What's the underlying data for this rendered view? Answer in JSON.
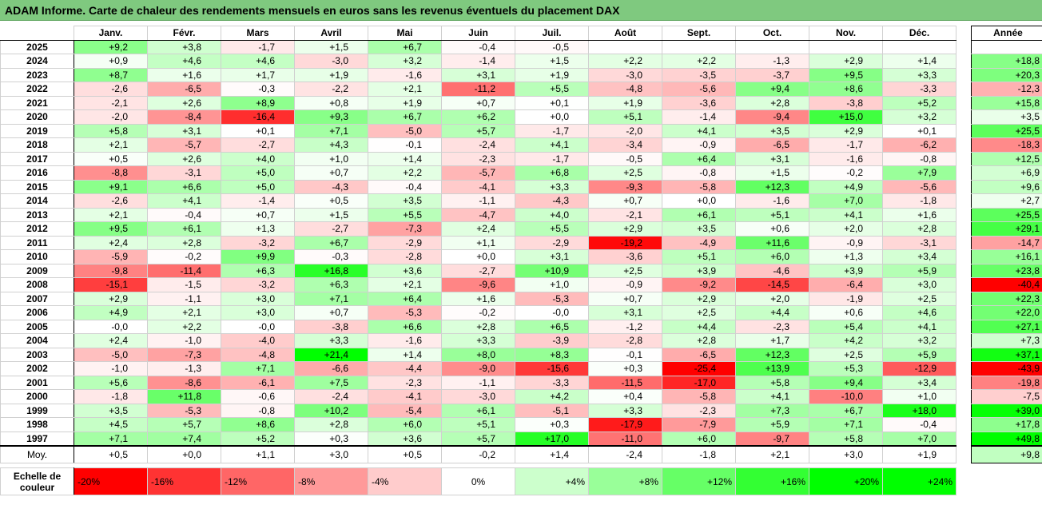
{
  "title": "ADAM Informe. Carte de chaleur des rendements mensuels en euros sans les revenus éventuels du placement DAX",
  "chart_data": {
    "type": "heatmap",
    "title": "ADAM Informe. Carte de chaleur des rendements mensuels en euros sans les revenus éventuels du placement DAX",
    "columns": [
      "Janv.",
      "Févr.",
      "Mars",
      "Avril",
      "Mai",
      "Juin",
      "Juil.",
      "Août",
      "Sept.",
      "Oct.",
      "Nov.",
      "Déc."
    ],
    "annual_header": "Année",
    "rows": [
      {
        "year": "2025",
        "values": [
          "+9,2",
          "+3,8",
          "-1,7",
          "+1,5",
          "+6,7",
          "-0,4",
          "-0,5",
          "",
          "",
          "",
          "",
          ""
        ],
        "annual": ""
      },
      {
        "year": "2024",
        "values": [
          "+0,9",
          "+4,6",
          "+4,6",
          "-3,0",
          "+3,2",
          "-1,4",
          "+1,5",
          "+2,2",
          "+2,2",
          "-1,3",
          "+2,9",
          "+1,4"
        ],
        "annual": "+18,8"
      },
      {
        "year": "2023",
        "values": [
          "+8,7",
          "+1,6",
          "+1,7",
          "+1,9",
          "-1,6",
          "+3,1",
          "+1,9",
          "-3,0",
          "-3,5",
          "-3,7",
          "+9,5",
          "+3,3"
        ],
        "annual": "+20,3"
      },
      {
        "year": "2022",
        "values": [
          "-2,6",
          "-6,5",
          "-0,3",
          "-2,2",
          "+2,1",
          "-11,2",
          "+5,5",
          "-4,8",
          "-5,6",
          "+9,4",
          "+8,6",
          "-3,3"
        ],
        "annual": "-12,3"
      },
      {
        "year": "2021",
        "values": [
          "-2,1",
          "+2,6",
          "+8,9",
          "+0,8",
          "+1,9",
          "+0,7",
          "+0,1",
          "+1,9",
          "-3,6",
          "+2,8",
          "-3,8",
          "+5,2"
        ],
        "annual": "+15,8"
      },
      {
        "year": "2020",
        "values": [
          "-2,0",
          "-8,4",
          "-16,4",
          "+9,3",
          "+6,7",
          "+6,2",
          "+0,0",
          "+5,1",
          "-1,4",
          "-9,4",
          "+15,0",
          "+3,2"
        ],
        "annual": "+3,5"
      },
      {
        "year": "2019",
        "values": [
          "+5,8",
          "+3,1",
          "+0,1",
          "+7,1",
          "-5,0",
          "+5,7",
          "-1,7",
          "-2,0",
          "+4,1",
          "+3,5",
          "+2,9",
          "+0,1"
        ],
        "annual": "+25,5"
      },
      {
        "year": "2018",
        "values": [
          "+2,1",
          "-5,7",
          "-2,7",
          "+4,3",
          "-0,1",
          "-2,4",
          "+4,1",
          "-3,4",
          "-0,9",
          "-6,5",
          "-1,7",
          "-6,2"
        ],
        "annual": "-18,3"
      },
      {
        "year": "2017",
        "values": [
          "+0,5",
          "+2,6",
          "+4,0",
          "+1,0",
          "+1,4",
          "-2,3",
          "-1,7",
          "-0,5",
          "+6,4",
          "+3,1",
          "-1,6",
          "-0,8"
        ],
        "annual": "+12,5"
      },
      {
        "year": "2016",
        "values": [
          "-8,8",
          "-3,1",
          "+5,0",
          "+0,7",
          "+2,2",
          "-5,7",
          "+6,8",
          "+2,5",
          "-0,8",
          "+1,5",
          "-0,2",
          "+7,9"
        ],
        "annual": "+6,9"
      },
      {
        "year": "2015",
        "values": [
          "+9,1",
          "+6,6",
          "+5,0",
          "-4,3",
          "-0,4",
          "-4,1",
          "+3,3",
          "-9,3",
          "-5,8",
          "+12,3",
          "+4,9",
          "-5,6"
        ],
        "annual": "+9,6"
      },
      {
        "year": "2014",
        "values": [
          "-2,6",
          "+4,1",
          "-1,4",
          "+0,5",
          "+3,5",
          "-1,1",
          "-4,3",
          "+0,7",
          "+0,0",
          "-1,6",
          "+7,0",
          "-1,8"
        ],
        "annual": "+2,7"
      },
      {
        "year": "2013",
        "values": [
          "+2,1",
          "-0,4",
          "+0,7",
          "+1,5",
          "+5,5",
          "-4,7",
          "+4,0",
          "-2,1",
          "+6,1",
          "+5,1",
          "+4,1",
          "+1,6"
        ],
        "annual": "+25,5"
      },
      {
        "year": "2012",
        "values": [
          "+9,5",
          "+6,1",
          "+1,3",
          "-2,7",
          "-7,3",
          "+2,4",
          "+5,5",
          "+2,9",
          "+3,5",
          "+0,6",
          "+2,0",
          "+2,8"
        ],
        "annual": "+29,1"
      },
      {
        "year": "2011",
        "values": [
          "+2,4",
          "+2,8",
          "-3,2",
          "+6,7",
          "-2,9",
          "+1,1",
          "-2,9",
          "-19,2",
          "-4,9",
          "+11,6",
          "-0,9",
          "-3,1"
        ],
        "annual": "-14,7"
      },
      {
        "year": "2010",
        "values": [
          "-5,9",
          "-0,2",
          "+9,9",
          "-0,3",
          "-2,8",
          "+0,0",
          "+3,1",
          "-3,6",
          "+5,1",
          "+6,0",
          "+1,3",
          "+3,4"
        ],
        "annual": "+16,1"
      },
      {
        "year": "2009",
        "values": [
          "-9,8",
          "-11,4",
          "+6,3",
          "+16,8",
          "+3,6",
          "-2,7",
          "+10,9",
          "+2,5",
          "+3,9",
          "-4,6",
          "+3,9",
          "+5,9"
        ],
        "annual": "+23,8"
      },
      {
        "year": "2008",
        "values": [
          "-15,1",
          "-1,5",
          "-3,2",
          "+6,3",
          "+2,1",
          "-9,6",
          "+1,0",
          "-0,9",
          "-9,2",
          "-14,5",
          "-6,4",
          "+3,0"
        ],
        "annual": "-40,4"
      },
      {
        "year": "2007",
        "values": [
          "+2,9",
          "-1,1",
          "+3,0",
          "+7,1",
          "+6,4",
          "+1,6",
          "-5,3",
          "+0,7",
          "+2,9",
          "+2,0",
          "-1,9",
          "+2,5"
        ],
        "annual": "+22,3"
      },
      {
        "year": "2006",
        "values": [
          "+4,9",
          "+2,1",
          "+3,0",
          "+0,7",
          "-5,3",
          "-0,2",
          "-0,0",
          "+3,1",
          "+2,5",
          "+4,4",
          "+0,6",
          "+4,6"
        ],
        "annual": "+22,0"
      },
      {
        "year": "2005",
        "values": [
          "-0,0",
          "+2,2",
          "-0,0",
          "-3,8",
          "+6,6",
          "+2,8",
          "+6,5",
          "-1,2",
          "+4,4",
          "-2,3",
          "+5,4",
          "+4,1"
        ],
        "annual": "+27,1"
      },
      {
        "year": "2004",
        "values": [
          "+2,4",
          "-1,0",
          "-4,0",
          "+3,3",
          "-1,6",
          "+3,3",
          "-3,9",
          "-2,8",
          "+2,8",
          "+1,7",
          "+4,2",
          "+3,2"
        ],
        "annual": "+7,3"
      },
      {
        "year": "2003",
        "values": [
          "-5,0",
          "-7,3",
          "-4,8",
          "+21,4",
          "+1,4",
          "+8,0",
          "+8,3",
          "-0,1",
          "-6,5",
          "+12,3",
          "+2,5",
          "+5,9"
        ],
        "annual": "+37,1"
      },
      {
        "year": "2002",
        "values": [
          "-1,0",
          "-1,3",
          "+7,1",
          "-6,6",
          "-4,4",
          "-9,0",
          "-15,6",
          "+0,3",
          "-25,4",
          "+13,9",
          "+5,3",
          "-12,9"
        ],
        "annual": "-43,9"
      },
      {
        "year": "2001",
        "values": [
          "+5,6",
          "-8,6",
          "-6,1",
          "+7,5",
          "-2,3",
          "-1,1",
          "-3,3",
          "-11,5",
          "-17,0",
          "+5,8",
          "+9,4",
          "+3,4"
        ],
        "annual": "-19,8"
      },
      {
        "year": "2000",
        "values": [
          "-1,8",
          "+11,8",
          "-0,6",
          "-2,4",
          "-4,1",
          "-3,0",
          "+4,2",
          "+0,4",
          "-5,8",
          "+4,1",
          "-10,0",
          "+1,0"
        ],
        "annual": "-7,5"
      },
      {
        "year": "1999",
        "values": [
          "+3,5",
          "-5,3",
          "-0,8",
          "+10,2",
          "-5,4",
          "+6,1",
          "-5,1",
          "+3,3",
          "-2,3",
          "+7,3",
          "+6,7",
          "+18,0"
        ],
        "annual": "+39,0"
      },
      {
        "year": "1998",
        "values": [
          "+4,5",
          "+5,7",
          "+8,6",
          "+2,8",
          "+6,0",
          "+5,1",
          "+0,3",
          "-17,9",
          "-7,9",
          "+5,9",
          "+7,1",
          "-0,4"
        ],
        "annual": "+17,8"
      },
      {
        "year": "1997",
        "values": [
          "+7,1",
          "+7,4",
          "+5,2",
          "+0,3",
          "+3,6",
          "+5,7",
          "+17,0",
          "-11,0",
          "+6,0",
          "-9,7",
          "+5,8",
          "+7,0"
        ],
        "annual": "+49,8"
      }
    ],
    "average": {
      "label": "Moy.",
      "values": [
        "+0,5",
        "+0,0",
        "+1,1",
        "+3,0",
        "+0,5",
        "-0,2",
        "+1,4",
        "-2,4",
        "-1,8",
        "+2,1",
        "+3,0",
        "+1,9"
      ],
      "annual": "+9,8"
    },
    "color_scale": {
      "label": "Echelle de couleur",
      "stops": [
        "-20%",
        "-16%",
        "-12%",
        "-8%",
        "-4%",
        "0%",
        "+4%",
        "+8%",
        "+12%",
        "+16%",
        "+20%",
        "+24%"
      ],
      "negative_color": "#ff0000",
      "positive_color": "#00ff00",
      "neutral_color": "#ffffff"
    }
  }
}
